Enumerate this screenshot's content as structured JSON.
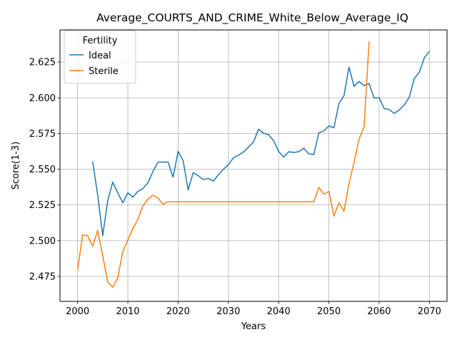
{
  "chart_data": {
    "type": "line",
    "title": "Average_COURTS_AND_CRIME_White_Below_Average_IQ",
    "xlabel": "Years",
    "ylabel": "Score(1-3)",
    "xlim": [
      1996.5,
      2073.5
    ],
    "ylim": [
      2.4575,
      2.6475
    ],
    "xticks": [
      2000,
      2010,
      2020,
      2030,
      2040,
      2050,
      2060,
      2070
    ],
    "yticks": [
      2.475,
      2.5,
      2.525,
      2.55,
      2.575,
      2.6,
      2.625
    ],
    "xtick_labels": [
      "2000",
      "2010",
      "2020",
      "2030",
      "2040",
      "2050",
      "2060",
      "2070"
    ],
    "ytick_labels": [
      "2.475",
      "2.500",
      "2.525",
      "2.550",
      "2.575",
      "2.600",
      "2.625"
    ],
    "grid": true,
    "legend": {
      "title": "Fertility",
      "placement": "top-left"
    },
    "series": [
      {
        "name": "Ideal",
        "color": "#1f77b4",
        "x": [
          2003,
          2004,
          2005,
          2006,
          2007,
          2008,
          2009,
          2010,
          2011,
          2012,
          2013,
          2014,
          2015,
          2016,
          2017,
          2018,
          2019,
          2020,
          2021,
          2022,
          2023,
          2024,
          2025,
          2026,
          2027,
          2028,
          2029,
          2030,
          2031,
          2032,
          2033,
          2034,
          2035,
          2036,
          2037,
          2038,
          2039,
          2040,
          2041,
          2042,
          2043,
          2044,
          2045,
          2046,
          2047,
          2048,
          2049,
          2050,
          2051,
          2052,
          2053,
          2054,
          2055,
          2056,
          2057,
          2058,
          2059,
          2060,
          2061,
          2062,
          2063,
          2064,
          2065,
          2066,
          2067,
          2068,
          2069,
          2070
        ],
        "y": [
          2.5555,
          2.532,
          2.5035,
          2.528,
          2.541,
          2.5335,
          2.5265,
          2.5335,
          2.5305,
          2.5345,
          2.5365,
          2.5405,
          2.5485,
          2.555,
          2.555,
          2.555,
          2.5445,
          2.5625,
          2.556,
          2.5355,
          2.5475,
          2.5455,
          2.5428,
          2.5435,
          2.5418,
          2.546,
          2.55,
          2.553,
          2.558,
          2.5598,
          2.562,
          2.5655,
          2.569,
          2.578,
          2.5752,
          2.5742,
          2.57,
          2.5625,
          2.5585,
          2.5622,
          2.5618,
          2.5622,
          2.5647,
          2.5608,
          2.5603,
          2.5755,
          2.5768,
          2.5803,
          2.579,
          2.596,
          2.6015,
          2.6215,
          2.608,
          2.6115,
          2.6085,
          2.61,
          2.5998,
          2.6,
          2.5925,
          2.5918,
          2.589,
          2.5915,
          2.595,
          2.6005,
          2.6135,
          2.618,
          2.628,
          2.6325
        ]
      },
      {
        "name": "Sterile",
        "color": "#ff7f0e",
        "x": [
          2000,
          2001,
          2002,
          2003,
          2004,
          2005,
          2006,
          2007,
          2008,
          2009,
          2010,
          2011,
          2012,
          2013,
          2014,
          2015,
          2016,
          2017,
          2018,
          2019,
          2020,
          2021,
          2022,
          2023,
          2024,
          2025,
          2026,
          2027,
          2028,
          2029,
          2030,
          2031,
          2032,
          2033,
          2034,
          2035,
          2036,
          2037,
          2038,
          2039,
          2040,
          2041,
          2042,
          2043,
          2044,
          2045,
          2046,
          2047,
          2048,
          2049,
          2050,
          2051,
          2052,
          2053,
          2054,
          2055,
          2056,
          2057,
          2058
        ],
        "y": [
          2.4795,
          2.504,
          2.5035,
          2.496,
          2.5072,
          2.4895,
          2.471,
          2.4675,
          2.474,
          2.4925,
          2.5005,
          2.5085,
          2.515,
          2.5245,
          2.529,
          2.5318,
          2.5298,
          2.5255,
          2.5272,
          2.5272,
          2.5272,
          2.5272,
          2.5272,
          2.5272,
          2.5272,
          2.5272,
          2.5272,
          2.5272,
          2.5272,
          2.5272,
          2.5272,
          2.5272,
          2.5272,
          2.5272,
          2.5272,
          2.5272,
          2.5272,
          2.5272,
          2.5272,
          2.5272,
          2.5272,
          2.5272,
          2.5272,
          2.5272,
          2.5272,
          2.5272,
          2.5272,
          2.5272,
          2.5372,
          2.5325,
          2.5345,
          2.5172,
          2.5265,
          2.5205,
          2.54,
          2.5545,
          2.571,
          2.5795,
          2.6395
        ]
      }
    ]
  }
}
